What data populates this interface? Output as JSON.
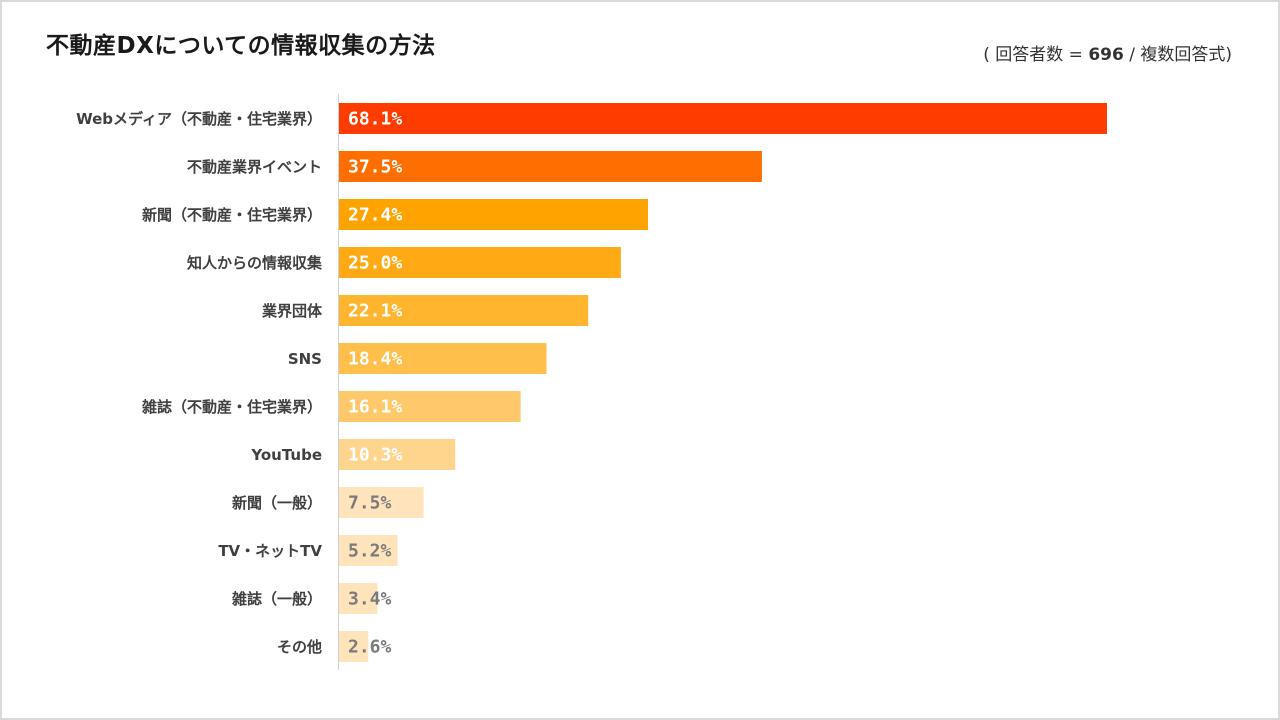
{
  "title": "不動産DXについての情報収集の方法",
  "note": {
    "open": "( 回答者数 = ",
    "n": "696",
    "close": " / 複数回答式)"
  },
  "chart_data": {
    "type": "bar",
    "orientation": "horizontal",
    "categories": [
      "Webメディア（不動産・住宅業界）",
      "不動産業界イベント",
      "新聞（不動産・住宅業界）",
      "知人からの情報収集",
      "業界団体",
      "SNS",
      "雑誌（不動産・住宅業界）",
      "YouTube",
      "新聞（一般）",
      "TV・ネットTV",
      "雑誌（一般）",
      "その他"
    ],
    "values": [
      68.1,
      37.5,
      27.4,
      25.0,
      22.1,
      18.4,
      16.1,
      10.3,
      7.5,
      5.2,
      3.4,
      2.6
    ],
    "labels": [
      "68.1%",
      "37.5%",
      "27.4%",
      "25.0%",
      "22.1%",
      "18.4%",
      "16.1%",
      "10.3%",
      "7.5%",
      "5.2%",
      "3.4%",
      "2.6%"
    ],
    "unit": "%",
    "xlim": [
      0,
      68.1
    ],
    "colors": [
      "#ff3c00",
      "#ff6e00",
      "#ffa300",
      "#ffaa15",
      "#ffb52e",
      "#ffbf4a",
      "#ffc86a",
      "#ffd58e",
      "#ffe4bb",
      "#ffe4bb",
      "#ffe4bb",
      "#ffe4bb"
    ],
    "label_colors": [
      "#ffffff",
      "#ffffff",
      "#ffffff",
      "#ffffff",
      "#ffffff",
      "#ffffff",
      "#ffffff",
      "#ffffff",
      "#7a7a7a",
      "#7a7a7a",
      "#7a7a7a",
      "#7a7a7a"
    ]
  }
}
